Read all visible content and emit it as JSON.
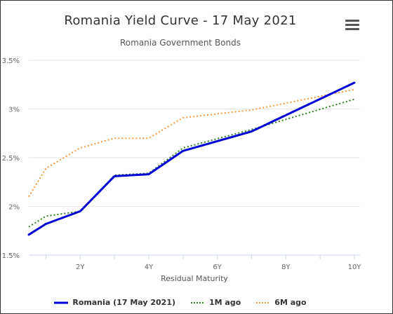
{
  "chart_data": {
    "type": "line",
    "title": "Romania Yield Curve - 17 May 2021",
    "subtitle": "Romania Government Bonds",
    "xlabel": "Residual Maturity",
    "ylabel": "",
    "x_unit": "years",
    "x": [
      0.5,
      1,
      2,
      3,
      4,
      5,
      7,
      10
    ],
    "x_ticks": [
      2,
      4,
      6,
      8,
      10
    ],
    "x_tick_labels": [
      "2Y",
      "4Y",
      "6Y",
      "8Y",
      "10Y"
    ],
    "xlim": [
      0.5,
      10
    ],
    "ylim": [
      1.5,
      3.5
    ],
    "y_ticks": [
      1.5,
      2,
      2.5,
      3,
      3.5
    ],
    "y_tick_labels": [
      "1.5%",
      "2%",
      "2.5%",
      "3%",
      "3.5%"
    ],
    "grid": "horizontal",
    "legend_position": "bottom-center",
    "series": [
      {
        "name": "Romania (17 May 2021)",
        "values": [
          1.71,
          1.82,
          1.95,
          2.31,
          2.33,
          2.57,
          2.77,
          3.27
        ],
        "color": "#0000d6",
        "style": "solid"
      },
      {
        "name": "1M ago",
        "values": [
          1.79,
          1.9,
          1.95,
          2.32,
          2.34,
          2.6,
          2.79,
          3.1
        ],
        "color": "#2e7d1f",
        "style": "dotted"
      },
      {
        "name": "6M ago",
        "values": [
          2.1,
          2.39,
          2.6,
          2.7,
          2.7,
          2.91,
          2.99,
          3.2
        ],
        "color": "#f59a3a",
        "style": "dotted"
      }
    ]
  }
}
